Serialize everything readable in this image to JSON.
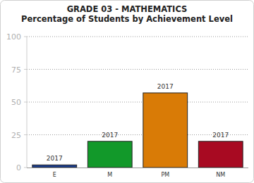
{
  "chart_data": {
    "type": "bar",
    "title": "GRADE 03 - MATHEMATICS",
    "subtitle": "Percentage of Students by Achievement Level",
    "categories": [
      "E",
      "M",
      "PM",
      "NM"
    ],
    "series": [
      {
        "name": "2017",
        "values": [
          2,
          20,
          57,
          20
        ]
      }
    ],
    "colors": [
      "#1b3d8c",
      "#12992a",
      "#d97b06",
      "#a80a22"
    ],
    "ylim": [
      0,
      100
    ],
    "yticks": [
      0,
      25,
      50,
      75,
      100
    ],
    "grid": true
  }
}
